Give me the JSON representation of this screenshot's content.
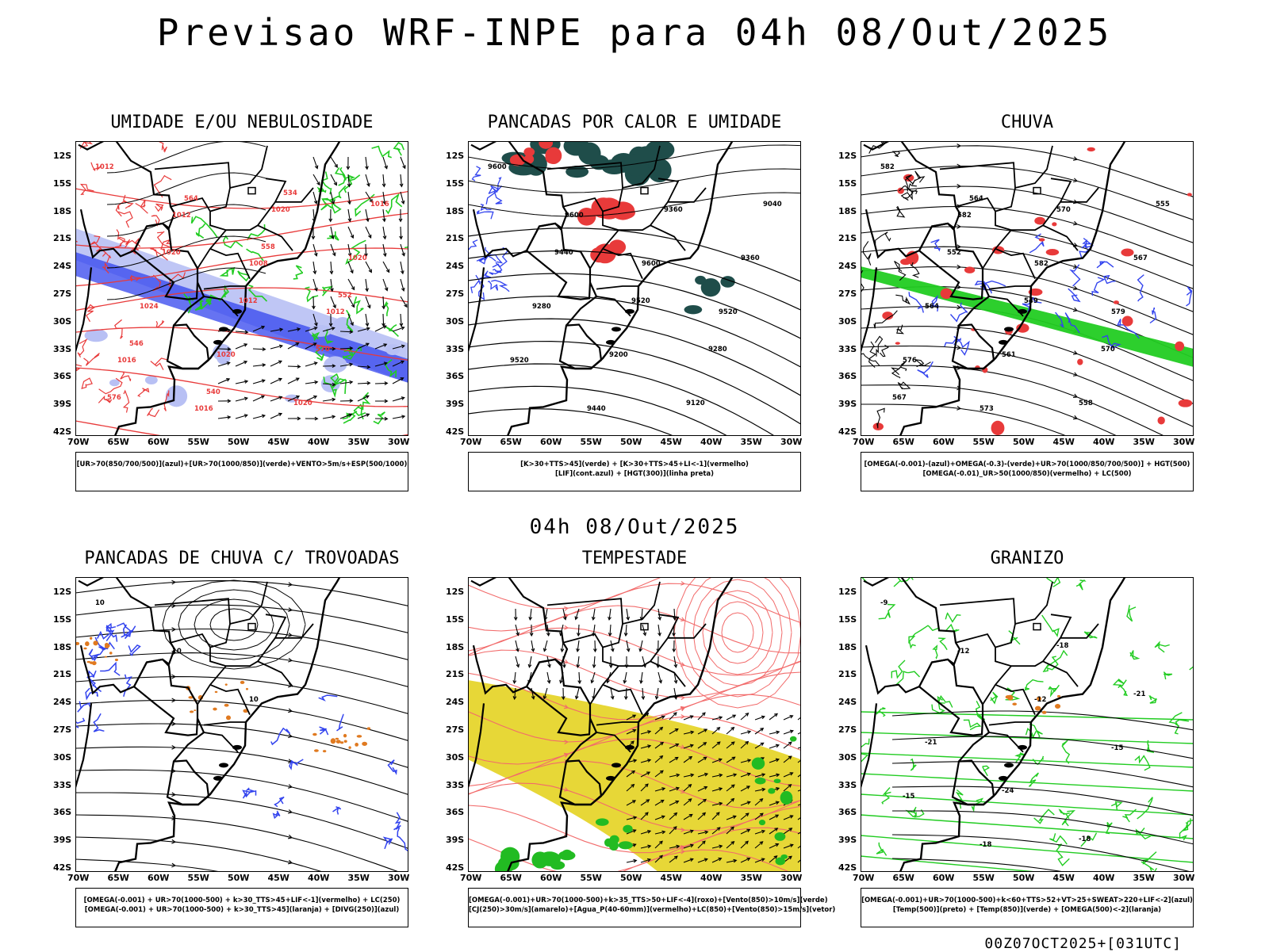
{
  "header": {
    "title": "Previsao WRF-INPE  para 04h 08/Out/2025",
    "mid_title": "04h 08/Out/2025",
    "stamp": "00Z07OCT2025+[031UTC]"
  },
  "axes": {
    "lon_labels": [
      "70W",
      "65W",
      "60W",
      "55W",
      "50W",
      "45W",
      "40W",
      "35W",
      "30W"
    ],
    "lat_labels": [
      "12S",
      "15S",
      "18S",
      "21S",
      "24S",
      "27S",
      "30S",
      "33S",
      "36S",
      "39S",
      "42S"
    ]
  },
  "colors": {
    "red": "#e83a3a",
    "green": "#22cc22",
    "blue": "#3344ee",
    "lightblue": "#b8c0f4",
    "teal": "#1f4d4a",
    "yellow": "#e6d52c",
    "orange": "#e07a20",
    "black": "#000000"
  },
  "panels": [
    {
      "id": "umidade",
      "title": "UMIDADE E/OU NEBULOSIDADE",
      "legend": [
        "[UR>70(850/700/500)](azul)+[UR>70(1000/850)](verde)+VENTO>5m/s+ESP(500/1000)"
      ],
      "contour_labels": [
        "1012",
        "1012",
        "1008",
        "1012",
        "1016",
        "1016",
        "1020",
        "1020",
        "1024",
        "1020",
        "1020",
        "1016",
        "1020",
        "1012",
        "570",
        "576",
        "564",
        "558",
        "552",
        "546",
        "540",
        "534"
      ]
    },
    {
      "id": "pancadas-calor",
      "title": "PANCADAS POR CALOR E UMIDADE",
      "legend": [
        "[K>30+TTS>45](verde) + [K>30+TTS>45+LI<-1](vermelho)",
        "[LIF](cont.azul) + [HGT(300)](linha preta)"
      ],
      "contour_labels": [
        "9600",
        "9600",
        "9600",
        "9520",
        "9520",
        "9440",
        "9360",
        "9360",
        "9280",
        "9200",
        "9120",
        "9040",
        "9440",
        "9520",
        "9280"
      ]
    },
    {
      "id": "chuva",
      "title": "CHUVA",
      "legend": [
        "[OMEGA(-0.001)-(azul)+OMEGA(-0.3)-(verde)+UR>70(1000/850/700/500)] + HGT(500)",
        "[OMEGA(-0.01)_UR>50(1000/850)(vermelho) + LC(500)"
      ],
      "contour_labels": [
        "582",
        "582",
        "582",
        "579",
        "576",
        "573",
        "570",
        "567",
        "564",
        "561",
        "558",
        "555",
        "552",
        "549",
        "570",
        "567",
        "564"
      ]
    },
    {
      "id": "trovoadas",
      "title": "PANCADAS DE CHUVA C/ TROVOADAS",
      "legend": [
        "[OMEGA(-0.001) + UR>70(1000-500) + k>30_TTS>45+LIF<-1](vermelho) + LC(250)",
        "[OMEGA(-0.001) + UR>70(1000-500) + k>30_TTS>45](laranja) + [DIVG(250)](azul)"
      ],
      "contour_labels": [
        "10",
        "10",
        "10"
      ]
    },
    {
      "id": "tempestade",
      "title": "TEMPESTADE",
      "legend": [
        "[OMEGA(-0.001)+UR>70(1000-500)+k>35_TTS>50+LIF<-4](roxo)+[Vento(850)>10m/s](verde)",
        "[CJ(250)>30m/s](amarelo)+[Agua_P(40-60mm)](vermelho)+LC(850)+[Vento(850)>15m/s](vetor)"
      ],
      "contour_labels": []
    },
    {
      "id": "granizo",
      "title": "GRANIZO",
      "legend": [
        "[OMEGA(-0.001)+UR>70(1000-500)+k<60+TTS>52+VT>25+SWEAT>220+LIF<-2](azul)",
        "[Temp(500)](preto) + [Temp(850)](verde) + [OMEGA(500)<-2](laranja)"
      ],
      "contour_labels": [
        "-9",
        "-12",
        "-12",
        "-15",
        "-15",
        "-18",
        "-18",
        "-21",
        "-21",
        "-24",
        "-18"
      ]
    }
  ]
}
